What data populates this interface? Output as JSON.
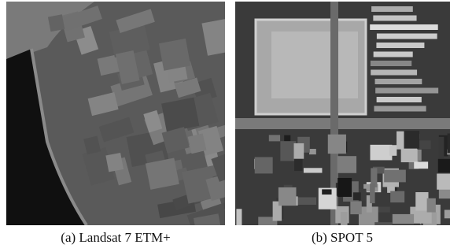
{
  "figure": {
    "panels": [
      {
        "caption": "(a) Landsat 7 ETM+"
      },
      {
        "caption": "(b) SPOT 5"
      }
    ]
  }
}
